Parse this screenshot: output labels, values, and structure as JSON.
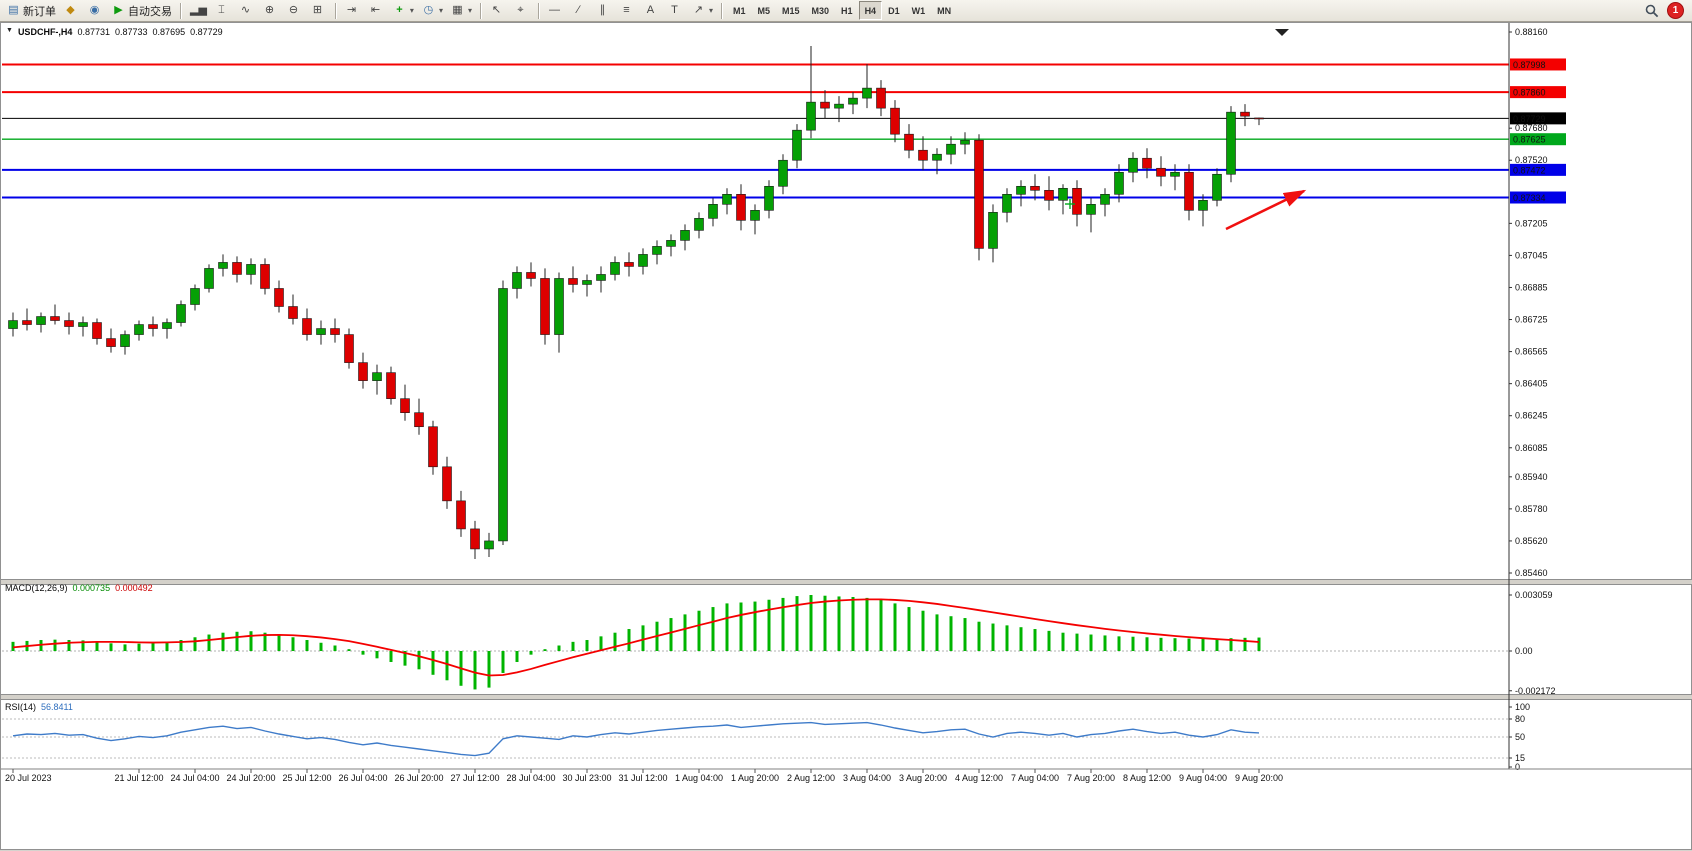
{
  "toolbar": {
    "new_order_label": "新订单",
    "autotrading_label": "自动交易",
    "icons": {
      "new_order": "▤",
      "chart_profiles": "◆",
      "market_watch": "◉",
      "autotrading": "▶",
      "bar_chart": "▂▅",
      "candlestick_chart": "⌶",
      "line_chart": "∿",
      "zoom_in": "⊕",
      "zoom_out": "⊖",
      "tile_windows": "⊞",
      "auto_scroll": "⇥",
      "chart_shift": "⇤",
      "indicators": "+",
      "periods": "◷",
      "templates": "▦",
      "cursor": "↖",
      "crosshair": "⌖",
      "h_line": "—",
      "trend_line": "∕",
      "channel": "∥",
      "fibonacci": "≡",
      "text": "A",
      "text_label": "T",
      "arrows": "↗",
      "caret": "▾"
    },
    "timeframes": [
      "M1",
      "M5",
      "M15",
      "M30",
      "H1",
      "H4",
      "D1",
      "W1",
      "MN"
    ],
    "active_timeframe": "H4",
    "notification_count": "1"
  },
  "chart_data": [
    {
      "type": "candlestick",
      "title": "USDCHF-,H4",
      "o": "0.87731",
      "h": "0.87733",
      "l": "0.87695",
      "c": "0.87729",
      "ylim": [
        0.8543,
        0.88185
      ],
      "y_axis_labels": [
        "0.88160",
        "0.87680",
        "0.87520",
        "0.87205",
        "0.87045",
        "0.86885",
        "0.86725",
        "0.86565",
        "0.86405",
        "0.86245",
        "0.86085",
        "0.85940",
        "0.85780",
        "0.85620",
        "0.85460"
      ],
      "levels": [
        {
          "price": 0.87998,
          "color": "#f40000",
          "width": 2
        },
        {
          "price": 0.8786,
          "color": "#f40000",
          "width": 2
        },
        {
          "price": 0.87625,
          "color": "#00a81c",
          "width": 1.4
        },
        {
          "price": 0.87472,
          "color": "#0000e8",
          "width": 2
        },
        {
          "price": 0.87334,
          "color": "#0000e8",
          "width": 2
        }
      ],
      "current_price": 0.87729,
      "badges": [
        {
          "text": "0.87998",
          "color": "#f40000"
        },
        {
          "text": "0.87860",
          "color": "#f40000"
        },
        {
          "text": "0.87729",
          "color": "#000000"
        },
        {
          "text": "0.87625",
          "color": "#00a81c"
        },
        {
          "text": "0.87472",
          "color": "#0000e8"
        },
        {
          "text": "0.87334",
          "color": "#0000e8"
        }
      ],
      "up_color": "#05a005",
      "down_color": "#de0000",
      "x_labels": [
        "20 Jul 2023",
        "21 Jul 12:00",
        "24 Jul 04:00",
        "24 Jul 20:00",
        "25 Jul 12:00",
        "26 Jul 04:00",
        "26 Jul 20:00",
        "27 Jul 12:00",
        "28 Jul 04:00",
        "30 Jul 23:00",
        "31 Jul 12:00",
        "1 Aug 04:00",
        "1 Aug 20:00",
        "2 Aug 12:00",
        "3 Aug 04:00",
        "3 Aug 20:00",
        "4 Aug 12:00",
        "7 Aug 04:00",
        "7 Aug 20:00",
        "8 Aug 12:00",
        "9 Aug 04:00",
        "9 Aug 20:00"
      ],
      "x_label_indices": [
        0,
        9,
        13,
        17,
        21,
        25,
        29,
        33,
        37,
        41,
        45,
        49,
        53,
        57,
        61,
        65,
        69,
        73,
        77,
        81,
        85,
        89
      ],
      "candles": [
        [
          0.8668,
          0.8676,
          0.8664,
          0.8672
        ],
        [
          0.8672,
          0.8678,
          0.8667,
          0.867
        ],
        [
          0.867,
          0.8676,
          0.8666,
          0.8674
        ],
        [
          0.8674,
          0.868,
          0.867,
          0.8672
        ],
        [
          0.8672,
          0.8676,
          0.8665,
          0.8669
        ],
        [
          0.8669,
          0.8674,
          0.8664,
          0.8671
        ],
        [
          0.8671,
          0.8673,
          0.866,
          0.8663
        ],
        [
          0.8663,
          0.8668,
          0.8656,
          0.8659
        ],
        [
          0.8659,
          0.8667,
          0.8655,
          0.8665
        ],
        [
          0.8665,
          0.8672,
          0.8662,
          0.867
        ],
        [
          0.867,
          0.8674,
          0.8664,
          0.8668
        ],
        [
          0.8668,
          0.8673,
          0.8663,
          0.8671
        ],
        [
          0.8671,
          0.8682,
          0.8669,
          0.868
        ],
        [
          0.868,
          0.869,
          0.8677,
          0.8688
        ],
        [
          0.8688,
          0.87,
          0.8686,
          0.8698
        ],
        [
          0.8698,
          0.8705,
          0.8694,
          0.8701
        ],
        [
          0.8701,
          0.8704,
          0.8691,
          0.8695
        ],
        [
          0.8695,
          0.8703,
          0.869,
          0.87
        ],
        [
          0.87,
          0.8703,
          0.8685,
          0.8688
        ],
        [
          0.8688,
          0.8692,
          0.8676,
          0.8679
        ],
        [
          0.8679,
          0.8685,
          0.867,
          0.8673
        ],
        [
          0.8673,
          0.8678,
          0.8662,
          0.8665
        ],
        [
          0.8665,
          0.8672,
          0.866,
          0.8668
        ],
        [
          0.8668,
          0.8673,
          0.8661,
          0.8665
        ],
        [
          0.8665,
          0.8668,
          0.8648,
          0.8651
        ],
        [
          0.8651,
          0.8656,
          0.8638,
          0.8642
        ],
        [
          0.8642,
          0.865,
          0.8635,
          0.8646
        ],
        [
          0.8646,
          0.8649,
          0.863,
          0.8633
        ],
        [
          0.8633,
          0.864,
          0.8622,
          0.8626
        ],
        [
          0.8626,
          0.8633,
          0.8615,
          0.8619
        ],
        [
          0.8619,
          0.8622,
          0.8595,
          0.8599
        ],
        [
          0.8599,
          0.8604,
          0.8578,
          0.8582
        ],
        [
          0.8582,
          0.8587,
          0.8564,
          0.8568
        ],
        [
          0.8568,
          0.8572,
          0.8553,
          0.8558
        ],
        [
          0.8558,
          0.8566,
          0.8554,
          0.8562
        ],
        [
          0.8562,
          0.8692,
          0.856,
          0.8688
        ],
        [
          0.8688,
          0.8699,
          0.8683,
          0.8696
        ],
        [
          0.8696,
          0.8701,
          0.8689,
          0.8693
        ],
        [
          0.8693,
          0.8698,
          0.866,
          0.8665
        ],
        [
          0.8665,
          0.8696,
          0.8656,
          0.8693
        ],
        [
          0.8693,
          0.8699,
          0.8686,
          0.869
        ],
        [
          0.869,
          0.8695,
          0.8684,
          0.8692
        ],
        [
          0.8692,
          0.8699,
          0.8686,
          0.8695
        ],
        [
          0.8695,
          0.8704,
          0.8692,
          0.8701
        ],
        [
          0.8701,
          0.8706,
          0.8694,
          0.8699
        ],
        [
          0.8699,
          0.8708,
          0.8695,
          0.8705
        ],
        [
          0.8705,
          0.8712,
          0.87,
          0.8709
        ],
        [
          0.8709,
          0.8715,
          0.8704,
          0.8712
        ],
        [
          0.8712,
          0.872,
          0.8707,
          0.8717
        ],
        [
          0.8717,
          0.8726,
          0.8713,
          0.8723
        ],
        [
          0.8723,
          0.8733,
          0.8719,
          0.873
        ],
        [
          0.873,
          0.8738,
          0.8725,
          0.8735
        ],
        [
          0.8735,
          0.874,
          0.8717,
          0.8722
        ],
        [
          0.8722,
          0.873,
          0.8715,
          0.8727
        ],
        [
          0.8727,
          0.8742,
          0.8723,
          0.8739
        ],
        [
          0.8739,
          0.8755,
          0.8735,
          0.8752
        ],
        [
          0.8752,
          0.877,
          0.8748,
          0.8767
        ],
        [
          0.8767,
          0.8809,
          0.8763,
          0.8781
        ],
        [
          0.8781,
          0.8787,
          0.8773,
          0.8778
        ],
        [
          0.8778,
          0.8784,
          0.8771,
          0.878
        ],
        [
          0.878,
          0.8786,
          0.8775,
          0.8783
        ],
        [
          0.8783,
          0.88,
          0.8778,
          0.8788
        ],
        [
          0.8788,
          0.8792,
          0.8774,
          0.8778
        ],
        [
          0.8778,
          0.8782,
          0.8761,
          0.8765
        ],
        [
          0.8765,
          0.877,
          0.8753,
          0.8757
        ],
        [
          0.8757,
          0.8764,
          0.8747,
          0.8752
        ],
        [
          0.8752,
          0.8758,
          0.8745,
          0.8755
        ],
        [
          0.8755,
          0.8764,
          0.875,
          0.876
        ],
        [
          0.876,
          0.8766,
          0.8755,
          0.8762
        ],
        [
          0.8762,
          0.8765,
          0.8702,
          0.8708
        ],
        [
          0.8708,
          0.873,
          0.8701,
          0.8726
        ],
        [
          0.8726,
          0.8738,
          0.8721,
          0.8735
        ],
        [
          0.8735,
          0.8742,
          0.8729,
          0.8739
        ],
        [
          0.8739,
          0.8745,
          0.8732,
          0.8737
        ],
        [
          0.8737,
          0.8744,
          0.8727,
          0.8732
        ],
        [
          0.8732,
          0.874,
          0.8725,
          0.8738
        ],
        [
          0.8738,
          0.8742,
          0.8719,
          0.8725
        ],
        [
          0.8725,
          0.8733,
          0.8716,
          0.873
        ],
        [
          0.873,
          0.8738,
          0.8724,
          0.8735
        ],
        [
          0.8735,
          0.875,
          0.8731,
          0.8746
        ],
        [
          0.8746,
          0.8756,
          0.8741,
          0.8753
        ],
        [
          0.8753,
          0.8758,
          0.8743,
          0.8748
        ],
        [
          0.8748,
          0.8754,
          0.8739,
          0.8744
        ],
        [
          0.8744,
          0.875,
          0.8737,
          0.8746
        ],
        [
          0.8746,
          0.875,
          0.8722,
          0.8727
        ],
        [
          0.8727,
          0.8735,
          0.8719,
          0.8732
        ],
        [
          0.8732,
          0.8748,
          0.8729,
          0.8745
        ],
        [
          0.8745,
          0.8779,
          0.8741,
          0.8776
        ],
        [
          0.8776,
          0.878,
          0.8769,
          0.8774
        ],
        [
          0.87731,
          0.87733,
          0.87695,
          0.87729
        ]
      ],
      "annotations": [
        {
          "type": "arrow",
          "color": "#f01010",
          "from": [
            1225,
            206
          ],
          "to": [
            1303,
            168
          ]
        },
        {
          "type": "cross",
          "color": "#00a81c",
          "at": [
            1069,
            181
          ]
        }
      ]
    },
    {
      "type": "bar",
      "name": "MACD",
      "label": "MACD(12,26,9)",
      "main_value": "0.000735",
      "signal_value": "0.000492",
      "y_axis_labels": [
        "0.003059",
        "0.00",
        "-0.002172"
      ],
      "ylim": [
        -0.002172,
        0.003059
      ],
      "histogram_color": "#00b400",
      "signal_color": "#f40000",
      "histogram": [
        0.0005,
        0.00055,
        0.0006,
        0.00062,
        0.0006,
        0.00058,
        0.0005,
        0.00042,
        0.00036,
        0.0004,
        0.00045,
        0.0005,
        0.0006,
        0.00075,
        0.0009,
        0.001,
        0.00105,
        0.00108,
        0.001,
        0.0009,
        0.00075,
        0.0006,
        0.00045,
        0.0003,
        0.0001,
        -0.0002,
        -0.0004,
        -0.0006,
        -0.0008,
        -0.001,
        -0.0013,
        -0.0016,
        -0.0019,
        -0.0021,
        -0.002,
        -0.0012,
        -0.0006,
        -0.0002,
        0.0001,
        0.0003,
        0.0005,
        0.0006,
        0.0008,
        0.001,
        0.0012,
        0.0014,
        0.0016,
        0.0018,
        0.002,
        0.0022,
        0.0024,
        0.0026,
        0.00265,
        0.0027,
        0.0028,
        0.0029,
        0.003,
        0.003059,
        0.00302,
        0.00298,
        0.00295,
        0.0029,
        0.0028,
        0.0026,
        0.0024,
        0.0022,
        0.002,
        0.0019,
        0.0018,
        0.0016,
        0.0015,
        0.0014,
        0.0013,
        0.0012,
        0.0011,
        0.001,
        0.00095,
        0.0009,
        0.00085,
        0.0008,
        0.00078,
        0.00075,
        0.00072,
        0.0007,
        0.00068,
        0.00066,
        0.00065,
        0.0007,
        0.00072,
        0.000735
      ],
      "signal": [
        0.0002,
        0.00027,
        0.00034,
        0.0004,
        0.00045,
        0.00048,
        0.0005,
        0.0005,
        0.00049,
        0.00047,
        0.00046,
        0.00047,
        0.00049,
        0.00053,
        0.0006,
        0.00068,
        0.00076,
        0.00083,
        0.00087,
        0.00088,
        0.00086,
        0.00081,
        0.00074,
        0.00065,
        0.00054,
        0.00039,
        0.00023,
        6e-05,
        -0.00011,
        -0.00029,
        -0.00049,
        -0.00071,
        -0.00095,
        -0.00118,
        -0.00134,
        -0.00131,
        -0.00117,
        -0.00098,
        -0.00076,
        -0.00055,
        -0.00034,
        -0.00015,
        4e-05,
        0.00023,
        0.00042,
        0.00062,
        0.00082,
        0.00101,
        0.00121,
        0.00141,
        0.0016,
        0.0018,
        0.00197,
        0.00212,
        0.00226,
        0.00239,
        0.00251,
        0.00262,
        0.0027,
        0.00276,
        0.0028,
        0.00282,
        0.00282,
        0.00279,
        0.00274,
        0.00266,
        0.00257,
        0.00246,
        0.00235,
        0.00223,
        0.00211,
        0.00199,
        0.00187,
        0.00175,
        0.00163,
        0.00152,
        0.00141,
        0.00131,
        0.00121,
        0.00112,
        0.00104,
        0.00096,
        0.00089,
        0.00082,
        0.00076,
        0.0007,
        0.00065,
        0.0006,
        0.00055,
        0.000492
      ]
    },
    {
      "type": "line",
      "name": "RSI",
      "label": "RSI(14)",
      "value_label": "56.8411",
      "y_axis_labels": [
        "100",
        "80",
        "50",
        "15",
        "0"
      ],
      "levels": [
        80,
        50,
        15
      ],
      "ylim": [
        0,
        100
      ],
      "line_color": "#3e7bc9",
      "values": [
        52,
        55,
        54,
        56,
        53,
        54,
        48,
        44,
        47,
        51,
        49,
        52,
        58,
        62,
        66,
        68,
        64,
        66,
        60,
        55,
        51,
        47,
        49,
        46,
        41,
        37,
        40,
        36,
        33,
        30,
        27,
        24,
        21,
        19,
        23,
        47,
        52,
        50,
        48,
        46,
        52,
        50,
        54,
        57,
        55,
        58,
        61,
        63,
        65,
        67,
        68,
        70,
        66,
        68,
        70,
        72,
        73,
        74,
        71,
        72,
        73,
        74,
        70,
        65,
        61,
        57,
        59,
        62,
        63,
        55,
        50,
        56,
        58,
        56,
        53,
        56,
        50,
        54,
        56,
        60,
        63,
        59,
        56,
        58,
        53,
        50,
        54,
        62,
        58,
        56.84
      ]
    }
  ]
}
